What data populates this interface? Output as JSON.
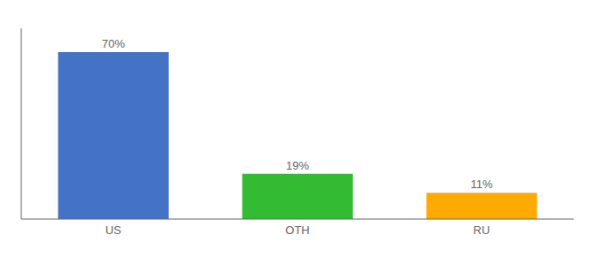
{
  "chart_data": {
    "type": "bar",
    "categories": [
      "US",
      "OTH",
      "RU"
    ],
    "values": [
      70,
      19,
      11
    ],
    "value_labels": [
      "70%",
      "19%",
      "11%"
    ],
    "colors": [
      "#4472c4",
      "#33bb33",
      "#ffaa00"
    ],
    "ylim": [
      0,
      80
    ],
    "data_labels": true,
    "tick_labels": "x",
    "grid": false
  }
}
